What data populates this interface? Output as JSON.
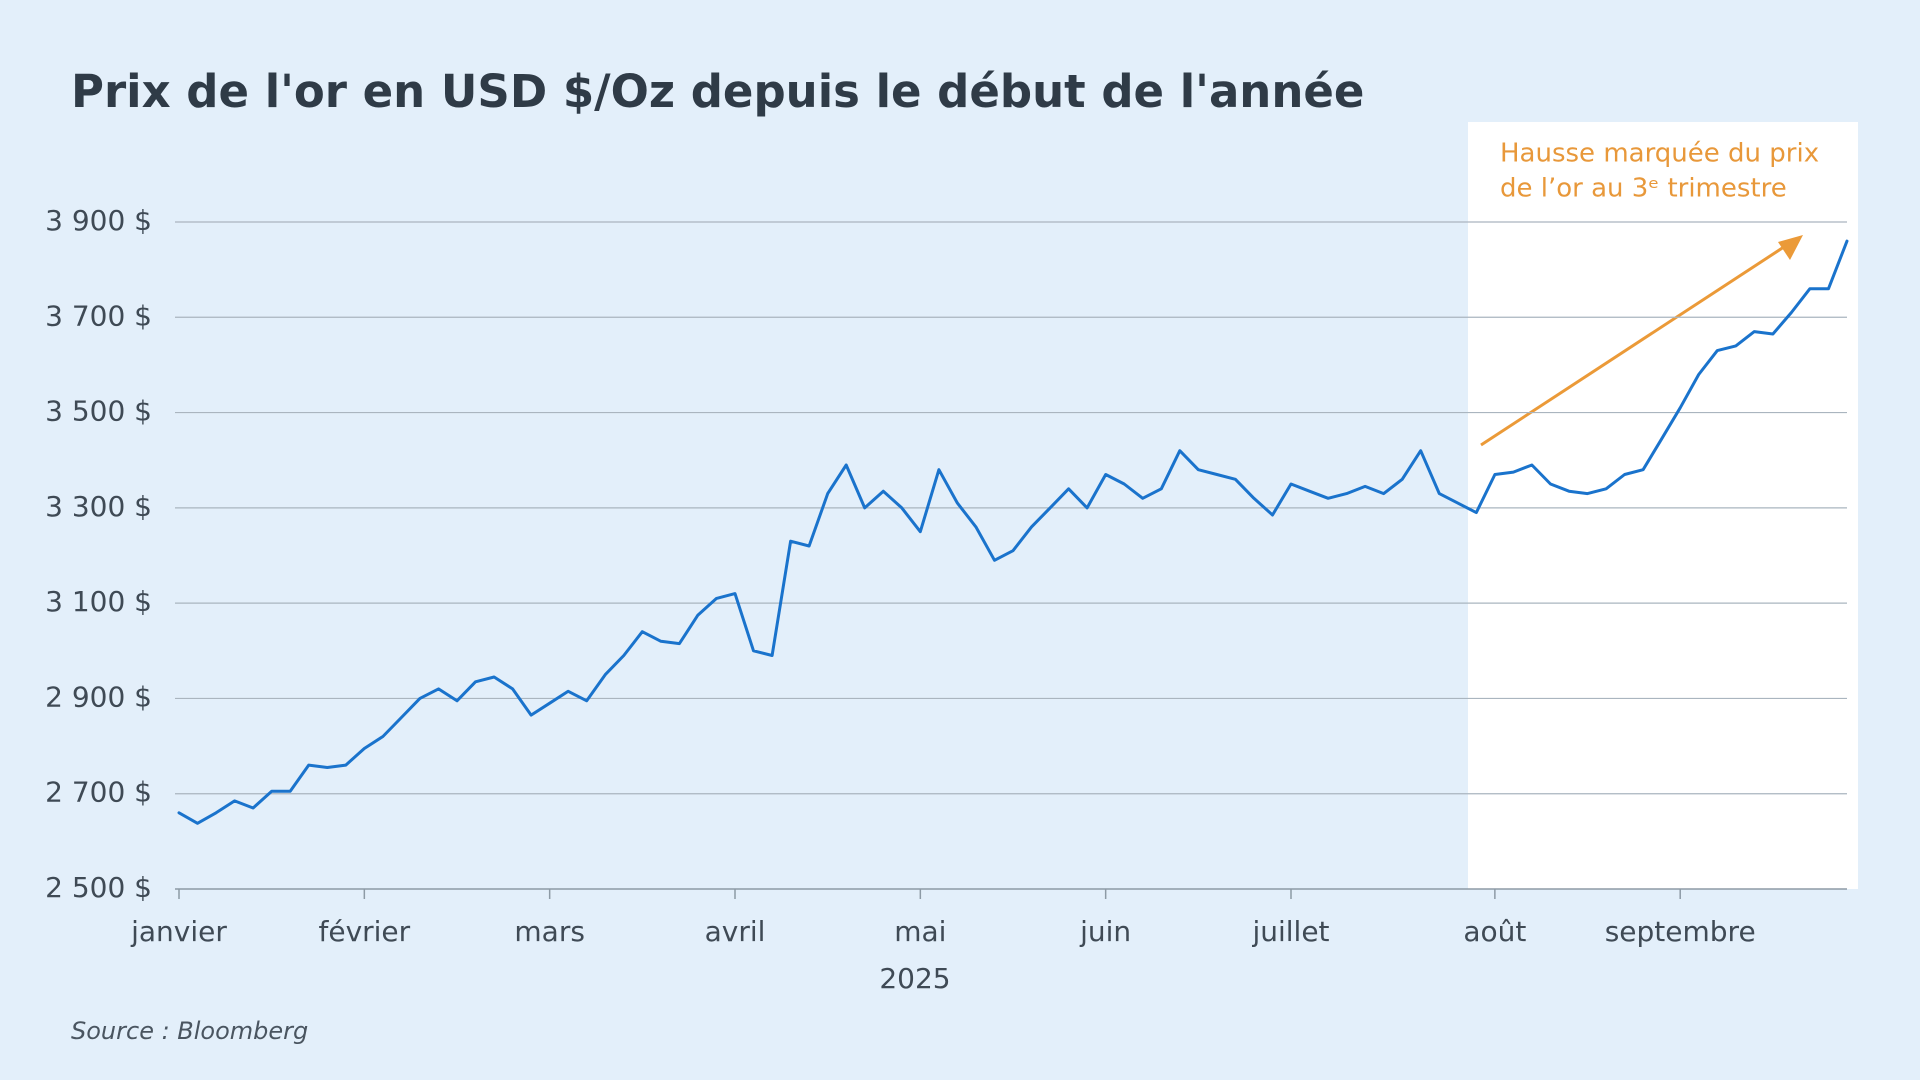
{
  "chart_data": {
    "type": "line",
    "title": "Prix de l'or en USD $/Oz  depuis le début de l'année",
    "x_label": "2025",
    "source": "Source : Bloomberg",
    "annotation": [
      "Hausse marquée du prix",
      "de l’or au 3ᵉ trimestre"
    ],
    "categories": [
      "janvier",
      null,
      null,
      null,
      null,
      null,
      null,
      null,
      null,
      null,
      "février",
      null,
      null,
      null,
      null,
      null,
      null,
      null,
      null,
      null,
      "mars",
      null,
      null,
      null,
      null,
      null,
      null,
      null,
      null,
      null,
      "avril",
      null,
      null,
      null,
      null,
      null,
      null,
      null,
      null,
      null,
      "mai",
      null,
      null,
      null,
      null,
      null,
      null,
      null,
      null,
      null,
      "juin",
      null,
      null,
      null,
      null,
      null,
      null,
      null,
      null,
      null,
      "juillet",
      null,
      null,
      null,
      null,
      null,
      null,
      null,
      null,
      null,
      null,
      "août",
      null,
      null,
      null,
      null,
      null,
      null,
      null,
      null,
      null,
      "septembre",
      null,
      null,
      null,
      null,
      null,
      null,
      null,
      null,
      null
    ],
    "series": [
      {
        "name": "Prix de l'or",
        "color": "#1a73cc",
        "values": [
          2660,
          2638,
          2660,
          2685,
          2670,
          2705,
          2705,
          2760,
          2755,
          2760,
          2795,
          2820,
          2860,
          2900,
          2920,
          2895,
          2935,
          2945,
          2920,
          2865,
          2890,
          2915,
          2895,
          2950,
          2990,
          3040,
          3020,
          3015,
          3075,
          3110,
          3120,
          3000,
          2990,
          3230,
          3220,
          3330,
          3390,
          3300,
          3335,
          3300,
          3250,
          3380,
          3310,
          3260,
          3190,
          3210,
          3260,
          3300,
          3340,
          3300,
          3370,
          3350,
          3320,
          3340,
          3420,
          3380,
          3370,
          3360,
          3320,
          3285,
          3350,
          3335,
          3320,
          3330,
          3345,
          3330,
          3360,
          3420,
          3330,
          3310,
          3290,
          3370,
          3375,
          3390,
          3350,
          3335,
          3330,
          3340,
          3370,
          3380,
          3445,
          3510,
          3580,
          3630,
          3640,
          3670,
          3665,
          3710,
          3760,
          3760,
          3860
        ]
      }
    ],
    "ylim": [
      2500,
      3900
    ],
    "yticks": [
      {
        "value": 2500,
        "label": "2 500 $"
      },
      {
        "value": 2700,
        "label": "2 700 $"
      },
      {
        "value": 2900,
        "label": "2 900 $"
      },
      {
        "value": 3100,
        "label": "3 100 $"
      },
      {
        "value": 3300,
        "label": "3 300 $"
      },
      {
        "value": 3500,
        "label": "3 500 $"
      },
      {
        "value": 3700,
        "label": "3 700 $"
      },
      {
        "value": 3900,
        "label": "3 900 $"
      }
    ],
    "grid": true
  }
}
